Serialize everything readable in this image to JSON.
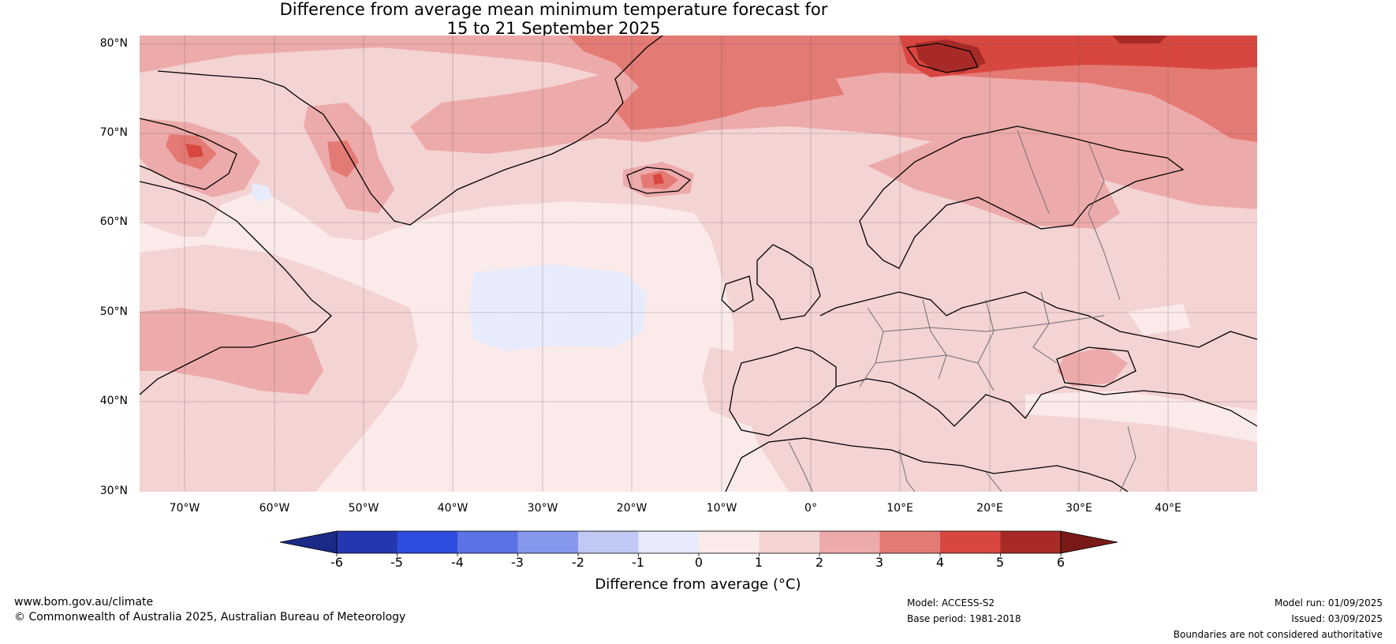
{
  "title_line1": "Difference from average mean minimum temperature forecast for",
  "title_line2": "15 to 21 September 2025",
  "lat_labels": [
    "80°N",
    "70°N",
    "60°N",
    "50°N",
    "40°N",
    "30°N"
  ],
  "lon_labels": [
    "70°W",
    "60°W",
    "50°W",
    "40°W",
    "30°W",
    "20°W",
    "10°W",
    "0°",
    "10°E",
    "20°E",
    "30°E",
    "40°E"
  ],
  "colorbar": {
    "ticks": [
      "-6",
      "-5",
      "-4",
      "-3",
      "-2",
      "-1",
      "0",
      "1",
      "2",
      "3",
      "4",
      "5",
      "6"
    ],
    "label": "Difference from average (°C)",
    "colors": [
      "#1a2a86",
      "#2437b0",
      "#2e4cde",
      "#5a72e6",
      "#8598ec",
      "#c0c9f4",
      "#e8ebfb",
      "#fbeaea",
      "#f4d3d3",
      "#edaaaa",
      "#e47a74",
      "#d8473f",
      "#a82a26",
      "#7a1a18"
    ]
  },
  "footer": {
    "website": "www.bom.gov.au/climate",
    "copyright": "© Commonwealth of Australia 2025, Australian Bureau of Meteorology",
    "model": "Model: ACCESS-S2",
    "base_period": "Base period: 1981-2018",
    "model_run": "Model run: 01/09/2025",
    "issued": "Issued: 03/09/2025",
    "disclaimer": "Boundaries are not considered authoritative"
  }
}
